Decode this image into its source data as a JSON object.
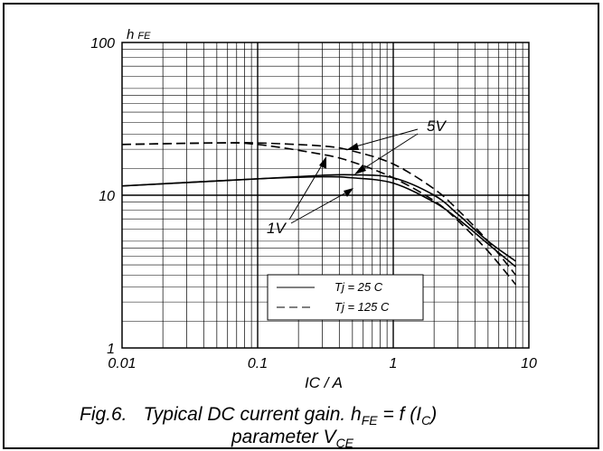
{
  "chart_data": {
    "type": "line",
    "xscale": "log",
    "yscale": "log",
    "xlim": [
      0.01,
      10
    ],
    "ylim": [
      1,
      100
    ],
    "grid": true,
    "xlabel": "IC / A",
    "ylabel_main": "h",
    "ylabel_sub": "FE",
    "x_ticks": [
      "0.01",
      "0.1",
      "1",
      "10"
    ],
    "y_ticks": [
      "100",
      "10",
      "1"
    ],
    "legend": {
      "placement": "bottom-center",
      "entries": [
        {
          "label": "Tj = 25 C",
          "style": "solid"
        },
        {
          "label": "Tj = 125 C",
          "style": "dashed"
        }
      ]
    },
    "series": [
      {
        "style": "solid",
        "x": [
          0.01,
          0.1,
          0.3,
          0.5,
          1,
          2,
          3,
          5,
          8
        ],
        "y": [
          11.5,
          12.8,
          13.2,
          13.0,
          12.0,
          9.0,
          7.0,
          4.8,
          3.4
        ]
      },
      {
        "style": "solid",
        "x": [
          0.01,
          0.1,
          0.3,
          0.5,
          1,
          2,
          3,
          5,
          8
        ],
        "y": [
          11.5,
          12.8,
          13.5,
          13.6,
          13.0,
          10.0,
          7.5,
          5.0,
          3.7
        ]
      },
      {
        "style": "dashed",
        "x": [
          0.01,
          0.05,
          0.1,
          0.3,
          0.5,
          1,
          2,
          3,
          5,
          8
        ],
        "y": [
          21.5,
          22.0,
          21.5,
          18.5,
          16.5,
          13.0,
          9.2,
          6.8,
          4.3,
          2.6
        ]
      },
      {
        "style": "dashed",
        "x": [
          0.01,
          0.05,
          0.1,
          0.3,
          0.5,
          1,
          2,
          3,
          5,
          8
        ],
        "y": [
          21.5,
          22.0,
          22.0,
          21.0,
          19.5,
          16.0,
          11.0,
          8.0,
          5.0,
          3.0
        ]
      }
    ],
    "annotations": [
      {
        "text": "5V"
      },
      {
        "text": "1V"
      }
    ]
  },
  "caption": {
    "prefix": "Fig.6.",
    "line1": "Typical DC current gain. h",
    "sub1": "FE",
    "mid": " = f (I",
    "sub2": "C",
    "end": ")",
    "line2": "parameter V",
    "sub3": "CE"
  }
}
